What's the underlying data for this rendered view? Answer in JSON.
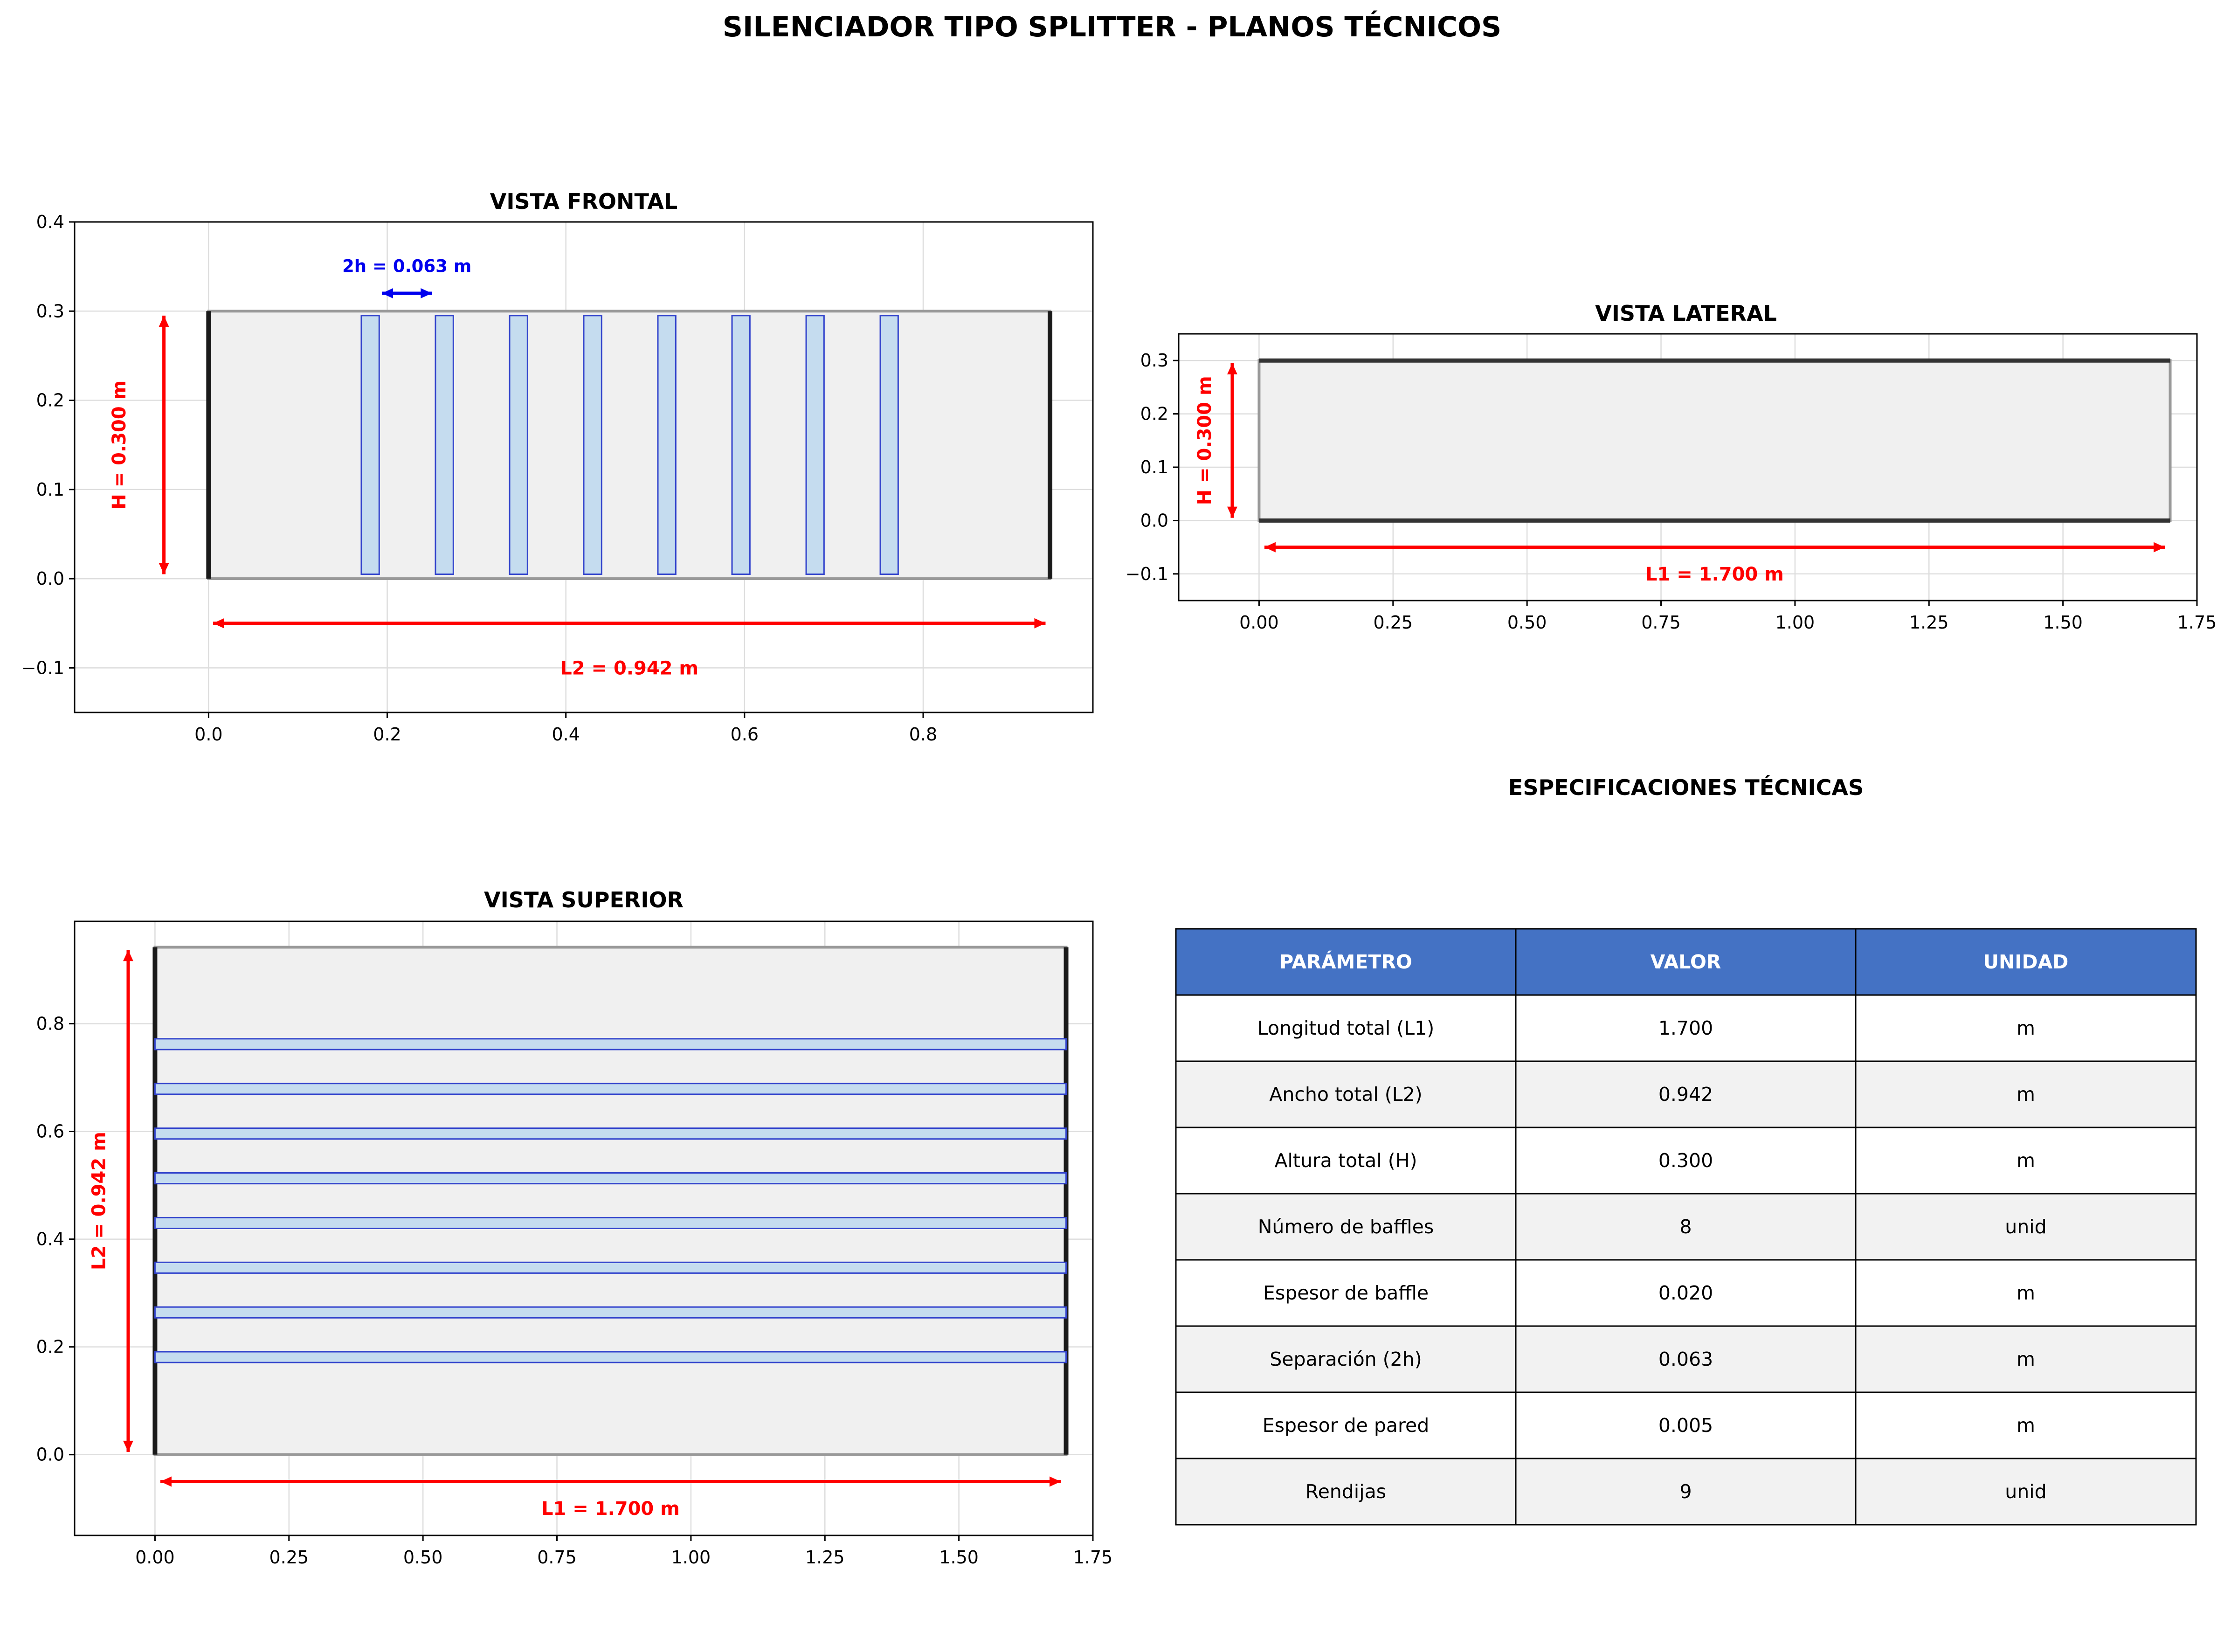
{
  "title": "SILENCIADOR TIPO SPLITTER - PLANOS TÉCNICOS",
  "colors": {
    "dimension_red": "#ff0000",
    "dimension_blue": "#0000ee",
    "baffle_fill": "#c5dcef",
    "baffle_edge": "#3344cc",
    "casing_fill": "#f0f0f0",
    "casing_edge": "#999999",
    "wall": "#1a1a1a",
    "table_header": "#4472c4",
    "table_alt_row": "#f2f2f2"
  },
  "frontal": {
    "title": "VISTA FRONTAL",
    "xlim": [
      -0.15,
      0.99
    ],
    "ylim": [
      -0.15,
      0.4
    ],
    "xticks": [
      "0.0",
      "0.2",
      "0.4",
      "0.6",
      "0.8"
    ],
    "yticks": [
      "−0.1",
      "0.0",
      "0.1",
      "0.2",
      "0.3",
      "0.4"
    ],
    "width_label": "L2 = 0.942 m",
    "height_label": "H = 0.300 m",
    "gap_label": "2h = 0.063 m",
    "casing": {
      "width": 0.942,
      "height": 0.3
    },
    "baffle_thickness": 0.02,
    "baffle_positions": [
      0.181,
      0.264,
      0.347,
      0.43,
      0.513,
      0.596,
      0.679,
      0.762
    ]
  },
  "lateral": {
    "title": "VISTA LATERAL",
    "xlim": [
      -0.15,
      1.75
    ],
    "ylim": [
      -0.15,
      0.35
    ],
    "xticks": [
      "0.00",
      "0.25",
      "0.50",
      "0.75",
      "1.00",
      "1.25",
      "1.50",
      "1.75"
    ],
    "yticks": [
      "−0.1",
      "0.0",
      "0.1",
      "0.2",
      "0.3"
    ],
    "length_label": "L1 = 1.700 m",
    "height_label": "H = 0.300 m"
  },
  "superior": {
    "title": "VISTA SUPERIOR",
    "xlim": [
      -0.15,
      1.75
    ],
    "ylim": [
      -0.15,
      0.99
    ],
    "xticks": [
      "0.00",
      "0.25",
      "0.50",
      "0.75",
      "1.00",
      "1.25",
      "1.50",
      "1.75"
    ],
    "yticks": [
      "0.0",
      "0.2",
      "0.4",
      "0.6",
      "0.8"
    ],
    "length_label": "L1 = 1.700 m",
    "width_label": "L2 = 0.942 m"
  },
  "specs": {
    "title": "ESPECIFICACIONES TÉCNICAS",
    "headers": [
      "PARÁMETRO",
      "VALOR",
      "UNIDAD"
    ],
    "rows": [
      [
        "Longitud total (L1)",
        "1.700",
        "m"
      ],
      [
        "Ancho total (L2)",
        "0.942",
        "m"
      ],
      [
        "Altura total (H)",
        "0.300",
        "m"
      ],
      [
        "Número de baffles",
        "8",
        "unid"
      ],
      [
        "Espesor de baffle",
        "0.020",
        "m"
      ],
      [
        "Separación (2h)",
        "0.063",
        "m"
      ],
      [
        "Espesor de pared",
        "0.005",
        "m"
      ],
      [
        "Rendijas",
        "9",
        "unid"
      ]
    ]
  }
}
